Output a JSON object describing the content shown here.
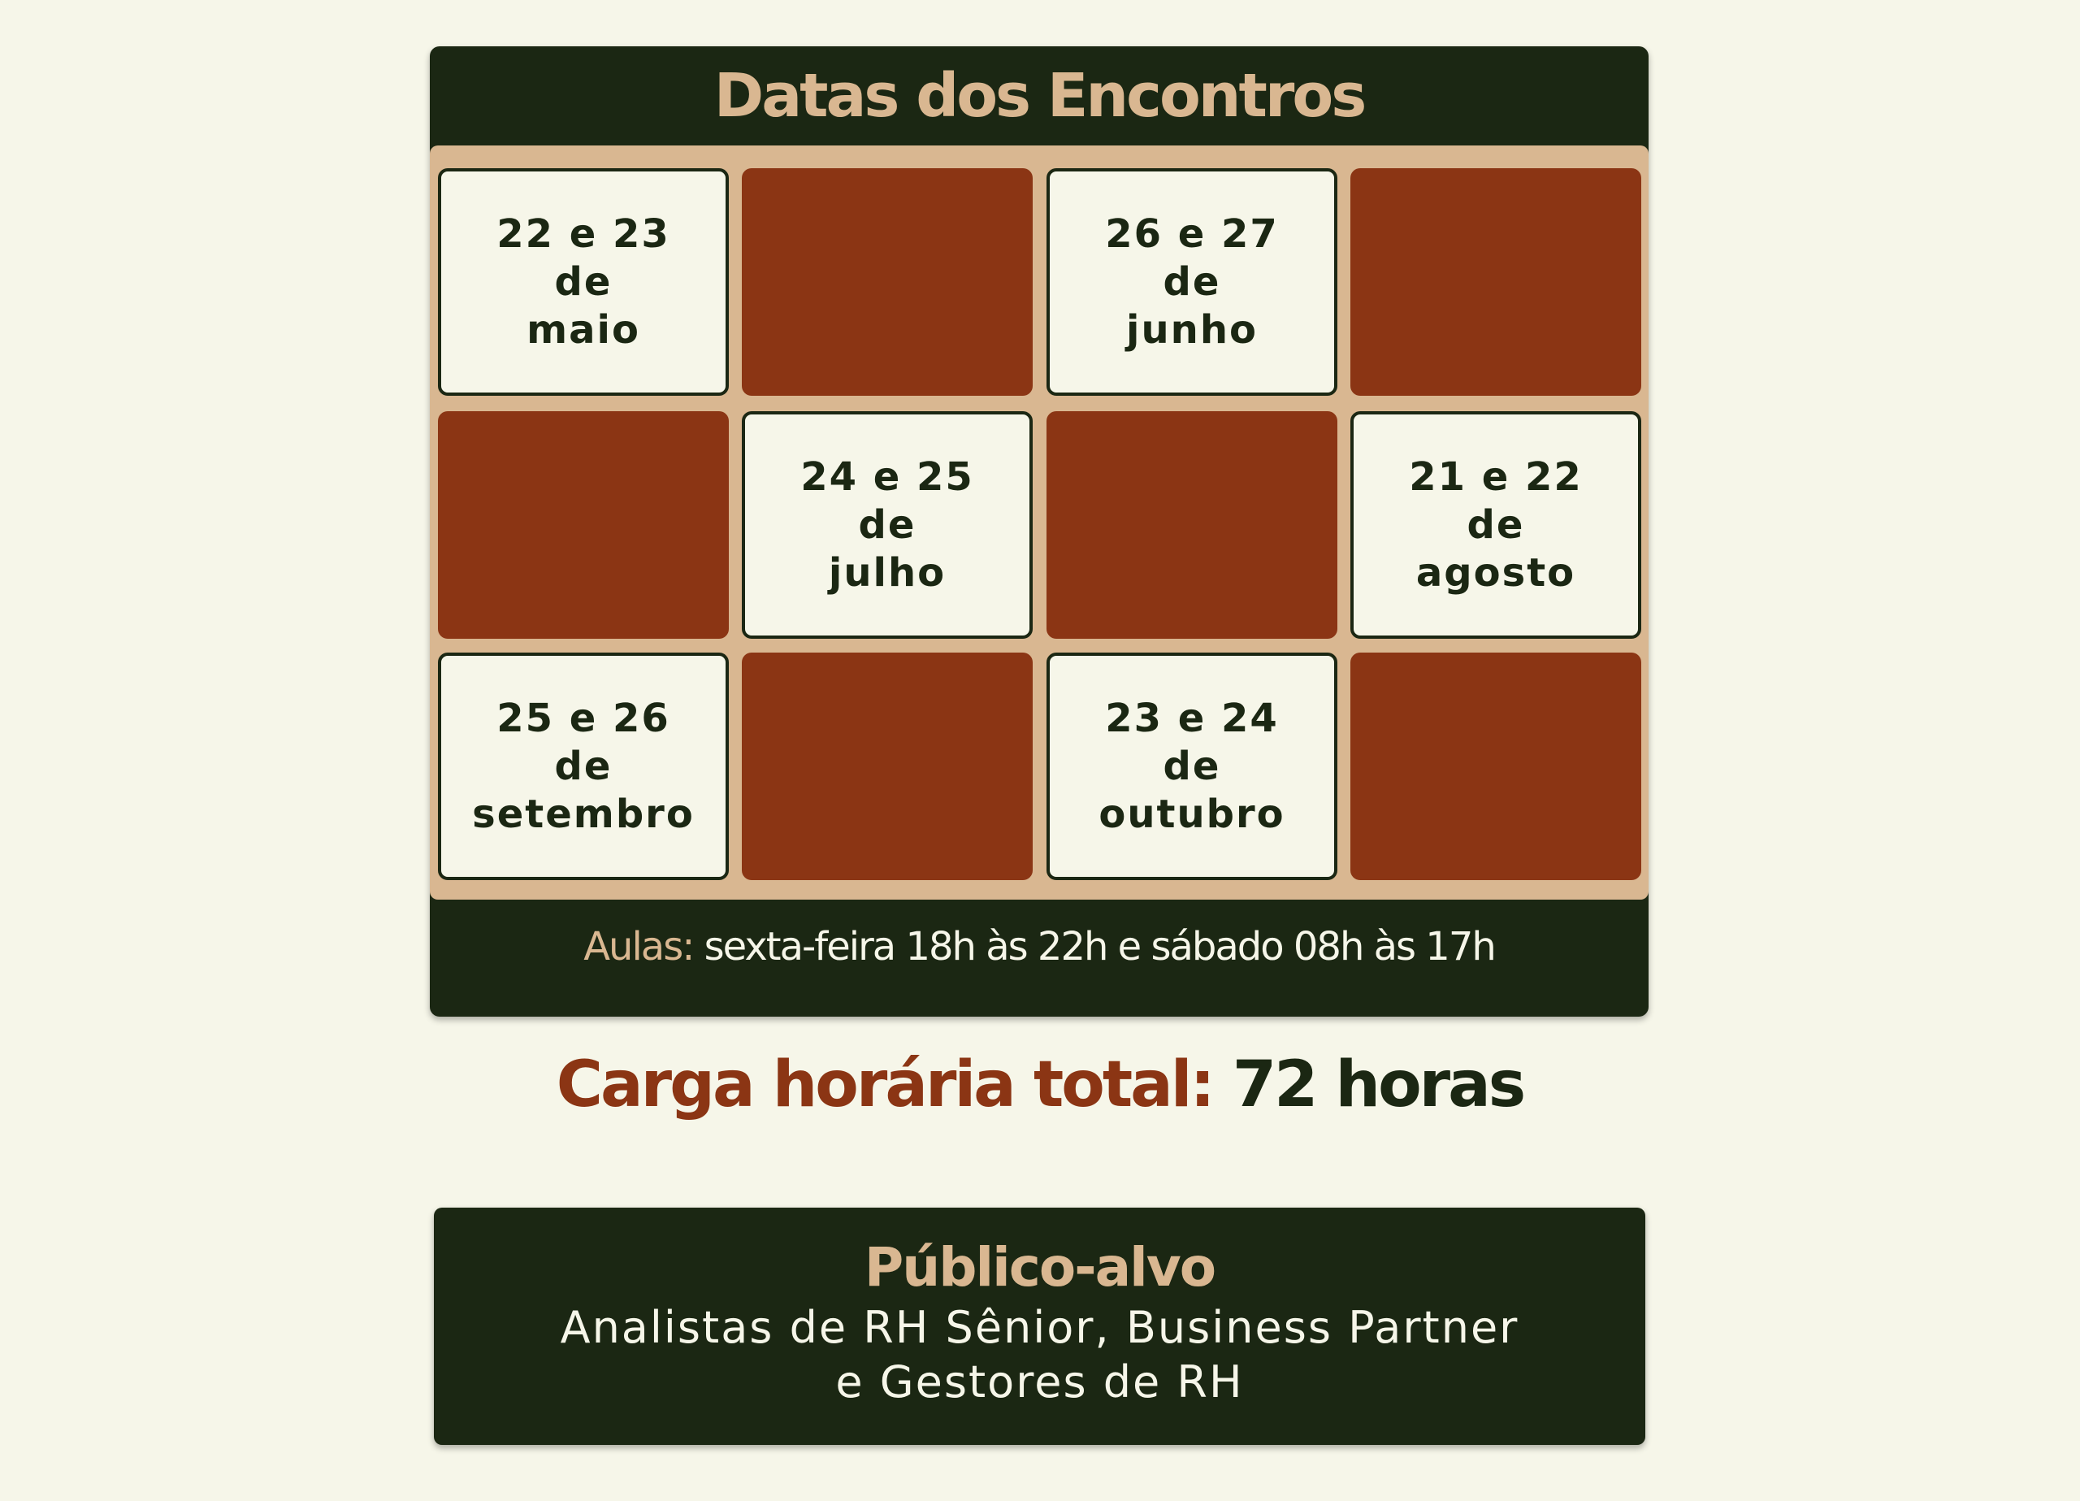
{
  "schedule": {
    "title": "Datas dos Encontros",
    "cells": [
      {
        "line1": "22 e 23",
        "line2": "de",
        "line3": "maio"
      },
      {
        "line1": "26 e 27",
        "line2": "de",
        "line3": "junho"
      },
      {
        "line1": "24 e 25",
        "line2": "de",
        "line3": "julho"
      },
      {
        "line1": "21 e 22",
        "line2": "de",
        "line3": "agosto"
      },
      {
        "line1": "25 e 26",
        "line2": "de",
        "line3": "setembro"
      },
      {
        "line1": "23 e 24",
        "line2": "de",
        "line3": "outubro"
      }
    ],
    "footer_label": "Aulas:",
    "footer_text": " sexta-feira 18h às 22h e sábado 08h às 17h"
  },
  "carga": {
    "label": "Carga horária total:",
    "value": " 72 horas"
  },
  "publico": {
    "title": "Público-alvo",
    "line1": "Analistas de RH Sênior, Business Partner",
    "line2": "e Gestores de RH"
  },
  "colors": {
    "dark": "#1b2713",
    "brown": "#8b3514",
    "beige": "#d9b791",
    "cream": "#f6f6e9"
  }
}
